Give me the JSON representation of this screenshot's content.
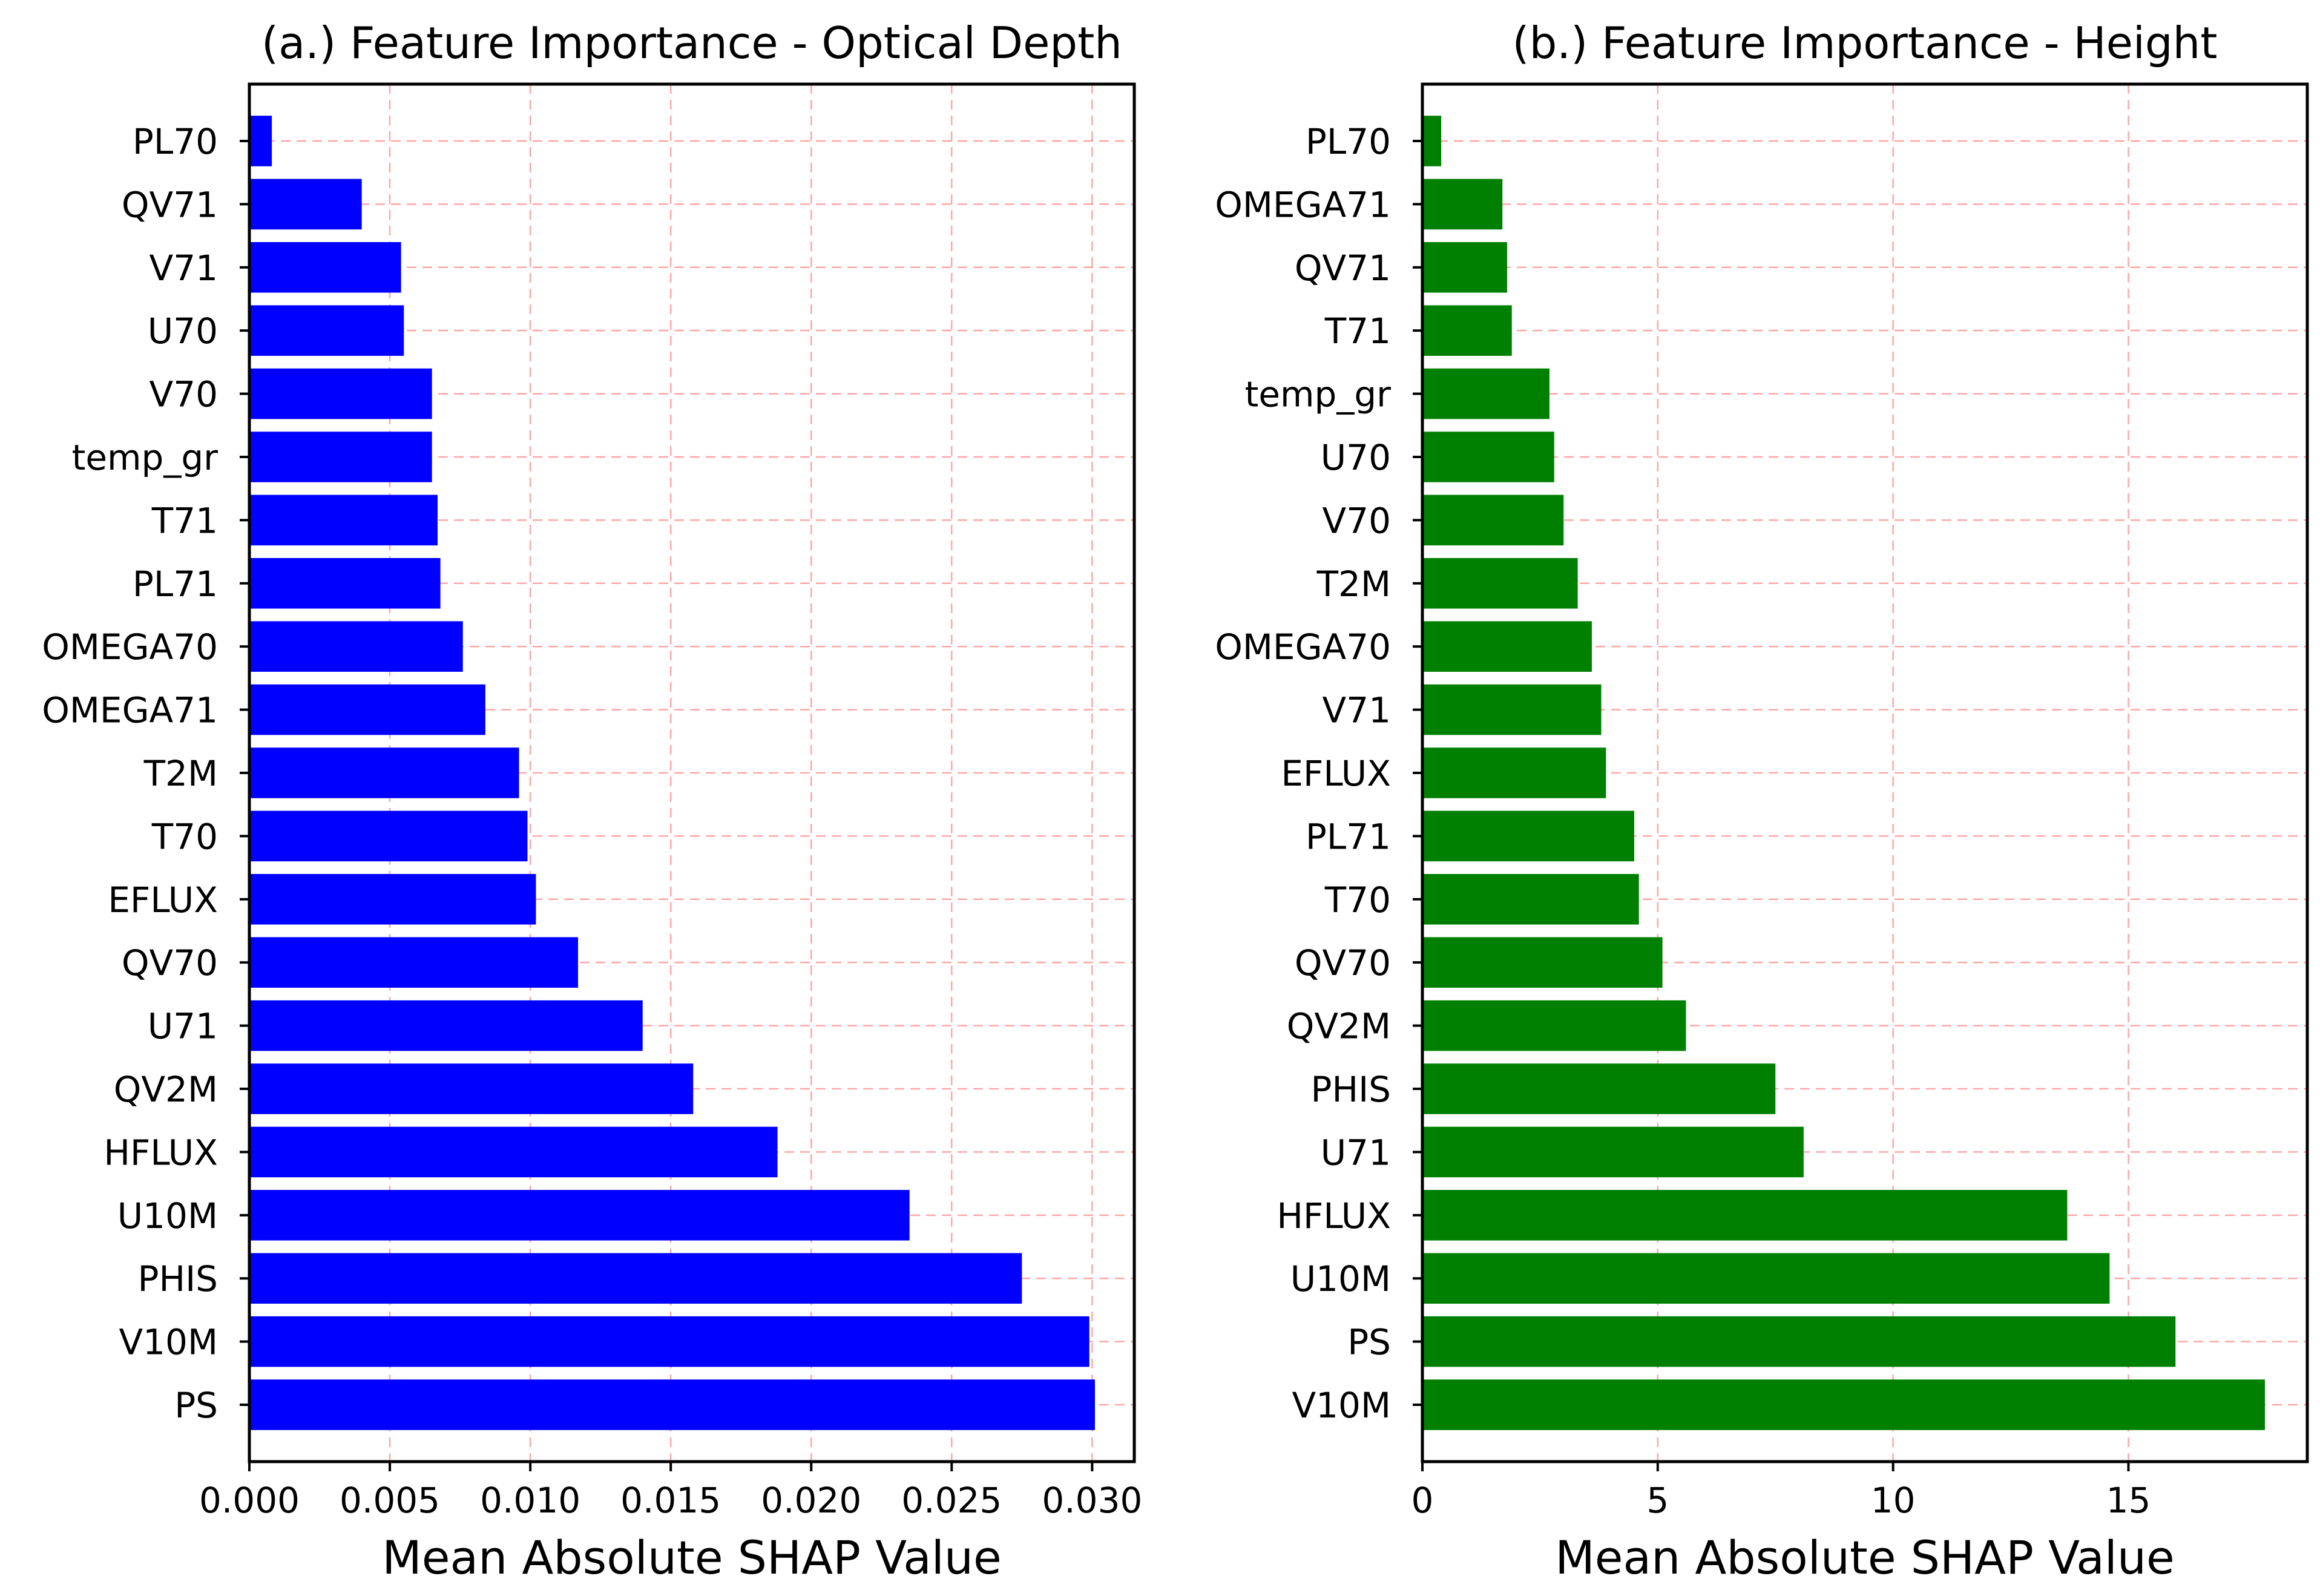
{
  "chart_data": [
    {
      "type": "bar",
      "orientation": "horizontal",
      "title": "(a.) Feature Importance - Optical Depth",
      "xlabel": "Mean Absolute SHAP Value",
      "ylabel": "",
      "xlim": [
        0,
        0.0315
      ],
      "xticks": [
        0.0,
        0.005,
        0.01,
        0.015,
        0.02,
        0.025,
        0.03
      ],
      "xtick_labels": [
        "0.000",
        "0.005",
        "0.010",
        "0.015",
        "0.020",
        "0.025",
        "0.030"
      ],
      "grid": true,
      "bar_color": "#0000ff",
      "categories": [
        "PS",
        "V10M",
        "PHIS",
        "U10M",
        "HFLUX",
        "QV2M",
        "U71",
        "QV70",
        "EFLUX",
        "T70",
        "T2M",
        "OMEGA71",
        "OMEGA70",
        "PL71",
        "T71",
        "temp_gr",
        "V70",
        "U70",
        "V71",
        "QV71",
        "PL70"
      ],
      "values": [
        0.0301,
        0.0299,
        0.0275,
        0.0235,
        0.0188,
        0.0158,
        0.014,
        0.0117,
        0.0102,
        0.0099,
        0.0096,
        0.0084,
        0.0076,
        0.0068,
        0.0067,
        0.0065,
        0.0065,
        0.0055,
        0.0054,
        0.004,
        0.0008
      ]
    },
    {
      "type": "bar",
      "orientation": "horizontal",
      "title": "(b.) Feature Importance - Height",
      "xlabel": "Mean Absolute SHAP Value",
      "ylabel": "",
      "xlim": [
        0,
        18.8
      ],
      "xticks": [
        0,
        5,
        10,
        15
      ],
      "xtick_labels": [
        "0",
        "5",
        "10",
        "15"
      ],
      "grid": true,
      "bar_color": "#008000",
      "categories": [
        "V10M",
        "PS",
        "U10M",
        "HFLUX",
        "U71",
        "PHIS",
        "QV2M",
        "QV70",
        "T70",
        "PL71",
        "EFLUX",
        "V71",
        "OMEGA70",
        "T2M",
        "V70",
        "U70",
        "temp_gr",
        "T71",
        "QV71",
        "OMEGA71",
        "PL70"
      ],
      "values": [
        17.9,
        16.0,
        14.6,
        13.7,
        8.1,
        7.5,
        5.6,
        5.1,
        4.6,
        4.5,
        3.9,
        3.8,
        3.6,
        3.3,
        3.0,
        2.8,
        2.7,
        1.9,
        1.8,
        1.7,
        0.4
      ]
    }
  ]
}
